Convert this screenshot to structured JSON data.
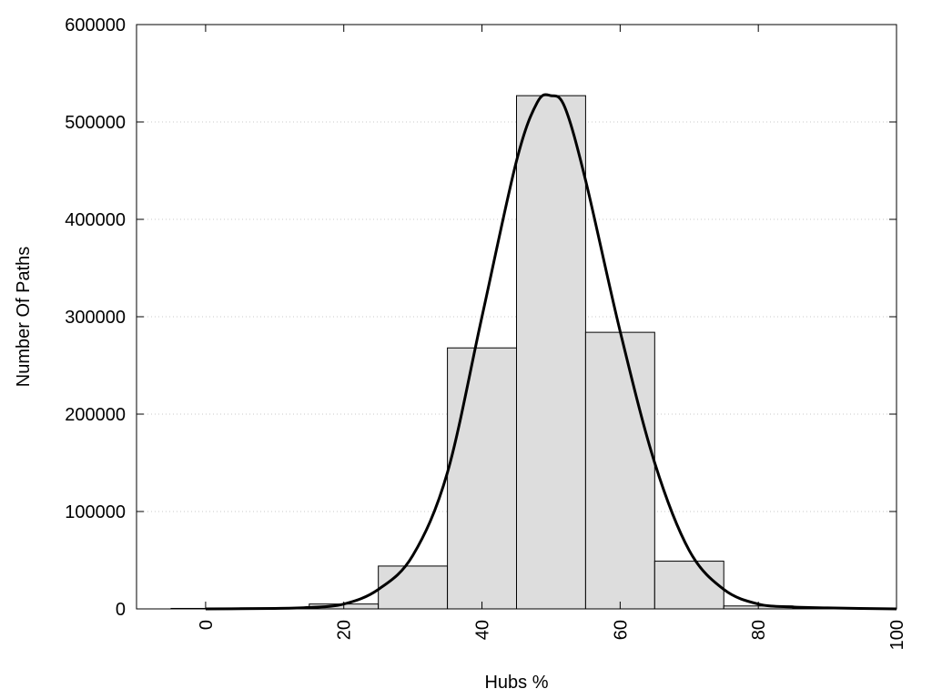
{
  "chart_data": {
    "type": "bar",
    "title": "",
    "xlabel": "Hubs %",
    "ylabel": "Number Of Paths",
    "xlim": [
      -10,
      100
    ],
    "ylim": [
      0,
      600000
    ],
    "grid": "horizontal-dotted",
    "legend": "none",
    "x_ticks": [
      0,
      20,
      40,
      60,
      80,
      100
    ],
    "y_ticks": [
      0,
      100000,
      200000,
      300000,
      400000,
      500000,
      600000
    ],
    "bins": [
      {
        "x": 0,
        "value": 500
      },
      {
        "x": 10,
        "value": 1000
      },
      {
        "x": 20,
        "value": 5000
      },
      {
        "x": 30,
        "value": 44000
      },
      {
        "x": 40,
        "value": 268000
      },
      {
        "x": 50,
        "value": 527000
      },
      {
        "x": 60,
        "value": 284000
      },
      {
        "x": 70,
        "value": 49000
      },
      {
        "x": 80,
        "value": 3000
      },
      {
        "x": 90,
        "value": 500
      }
    ],
    "bin_width": 10,
    "bar_color": "#dddddd",
    "curve": {
      "x": [
        0,
        10,
        15,
        20,
        25,
        30,
        35,
        40,
        45,
        48,
        50,
        52,
        55,
        60,
        65,
        70,
        75,
        80,
        85,
        90,
        100
      ],
      "y": [
        0,
        500,
        1500,
        5000,
        20000,
        55000,
        140000,
        300000,
        460000,
        520000,
        527000,
        515000,
        440000,
        285000,
        150000,
        60000,
        20000,
        5000,
        2000,
        1000,
        0
      ],
      "color": "#000000"
    }
  }
}
